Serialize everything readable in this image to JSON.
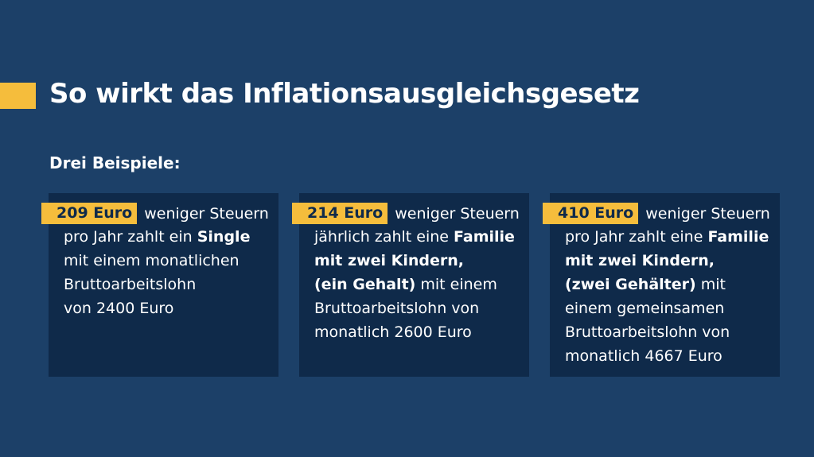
{
  "header": {
    "title": "So wirkt das Inflationsausgleichsgesetz",
    "subtitle": "Drei Beispiele:"
  },
  "cards": [
    {
      "amount": "209 Euro",
      "lines": [
        [
          {
            "text": "weniger Steuern"
          }
        ],
        [
          {
            "text": "pro Jahr zahlt ein "
          },
          {
            "text": "Single",
            "bold": true
          }
        ],
        [
          {
            "text": "mit einem monatlichen"
          }
        ],
        [
          {
            "text": "Bruttoarbeitslohn"
          }
        ],
        [
          {
            "text": "von 2400 Euro"
          }
        ]
      ]
    },
    {
      "amount": "214 Euro",
      "lines": [
        [
          {
            "text": "weniger Steuern"
          }
        ],
        [
          {
            "text": "jährlich zahlt eine "
          },
          {
            "text": "Familie",
            "bold": true
          }
        ],
        [
          {
            "text": "mit zwei Kindern,",
            "bold": true
          }
        ],
        [
          {
            "text": "(ein Gehalt)",
            "bold": true
          },
          {
            "text": " mit einem"
          }
        ],
        [
          {
            "text": "Bruttoarbeitslohn von"
          }
        ],
        [
          {
            "text": "monatlich 2600 Euro"
          }
        ]
      ]
    },
    {
      "amount": "410 Euro",
      "lines": [
        [
          {
            "text": "weniger Steuern"
          }
        ],
        [
          {
            "text": "pro Jahr zahlt eine "
          },
          {
            "text": "Familie",
            "bold": true
          }
        ],
        [
          {
            "text": "mit zwei Kindern,",
            "bold": true
          }
        ],
        [
          {
            "text": "(zwei Gehälter)",
            "bold": true
          },
          {
            "text": " mit"
          }
        ],
        [
          {
            "text": "einem gemeinsamen"
          }
        ],
        [
          {
            "text": "Bruttoarbeitslohn von"
          }
        ],
        [
          {
            "text": "monatlich 4667 Euro"
          }
        ]
      ]
    }
  ]
}
